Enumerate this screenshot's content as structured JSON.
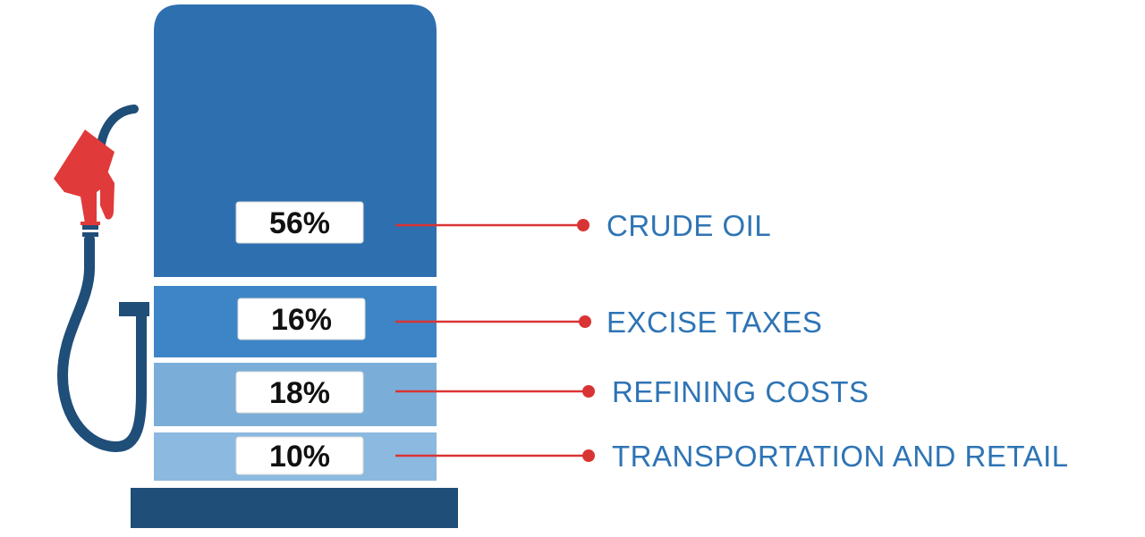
{
  "segments": [
    {
      "percent": "56%",
      "value": 56,
      "label": "CRUDE OIL",
      "color": "#2e6fb0"
    },
    {
      "percent": "16%",
      "value": 16,
      "label": "EXCISE TAXES",
      "color": "#3d85c6"
    },
    {
      "percent": "18%",
      "value": 18,
      "label": "REFINING COSTS",
      "color": "#7aaed9"
    },
    {
      "percent": "10%",
      "value": 10,
      "label": "TRANSPORTATION AND RETAIL",
      "color": "#8cb9df"
    }
  ],
  "colors": {
    "pump_base": "#1f4e79",
    "nozzle_red": "#e03a3a",
    "connector_red": "#d93434",
    "label_blue": "#2e74b5",
    "hose_navy": "#1f4e79"
  },
  "icons": [
    "fuel-nozzle-icon",
    "fuel-hose-icon"
  ]
}
